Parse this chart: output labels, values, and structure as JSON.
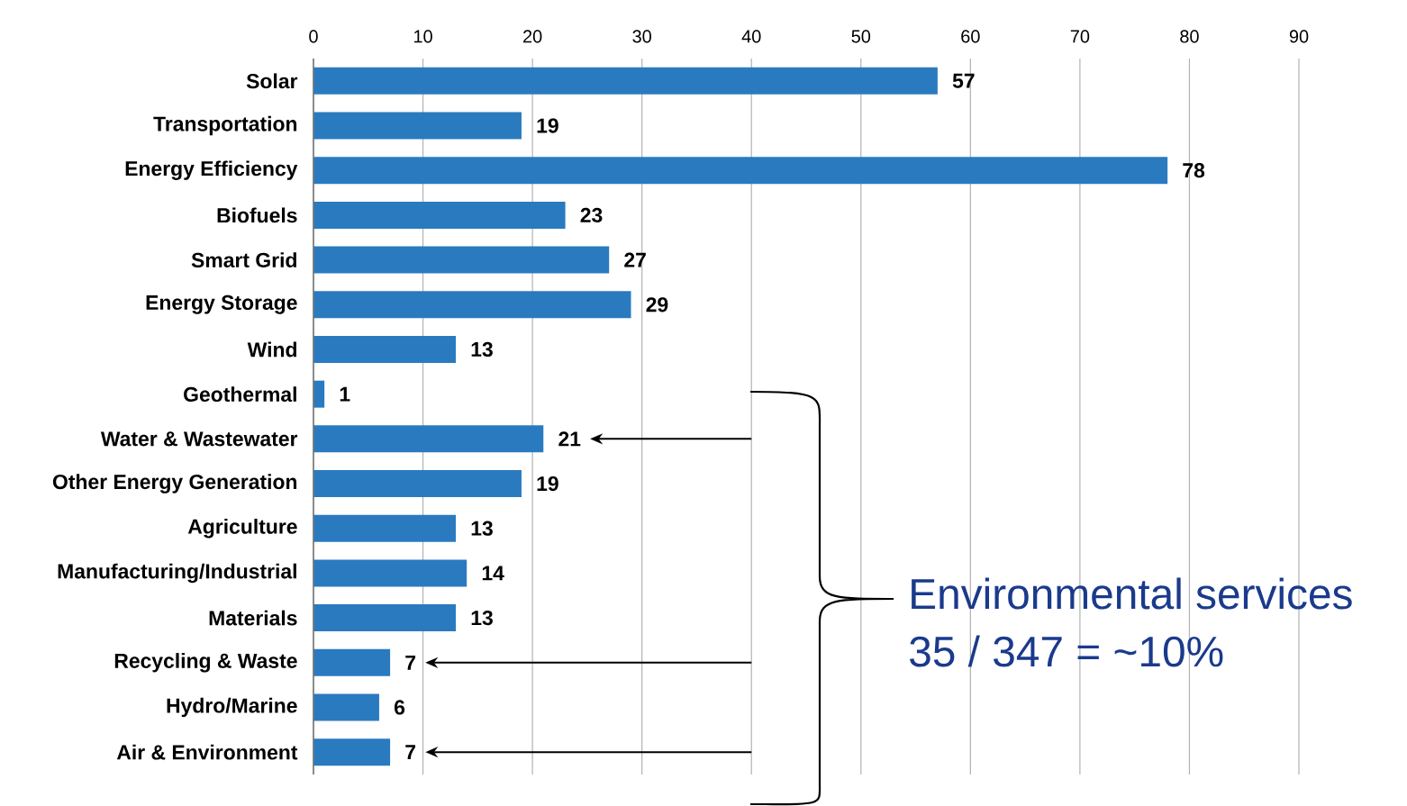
{
  "chart_data": {
    "type": "bar",
    "orientation": "horizontal",
    "categories": [
      "Solar",
      "Transportation",
      "Energy Efficiency",
      "Biofuels",
      "Smart Grid",
      "Energy Storage",
      "Wind",
      "Geothermal",
      "Water & Wastewater",
      "Other Energy Generation",
      "Agriculture",
      "Manufacturing/Industrial",
      "Materials",
      "Recycling & Waste",
      "Hydro/Marine",
      "Air & Environment"
    ],
    "values": [
      57,
      19,
      78,
      23,
      27,
      29,
      13,
      1,
      21,
      19,
      13,
      14,
      13,
      7,
      6,
      7
    ],
    "color": "#2a7ac0",
    "xlim": [
      0,
      90
    ],
    "xticks": [
      0,
      10,
      20,
      30,
      40,
      50,
      60,
      70,
      80,
      90
    ],
    "grid": "x",
    "data_labels": true,
    "annotations": [
      "Environmental services",
      "35 / 347 = ~10%"
    ]
  }
}
